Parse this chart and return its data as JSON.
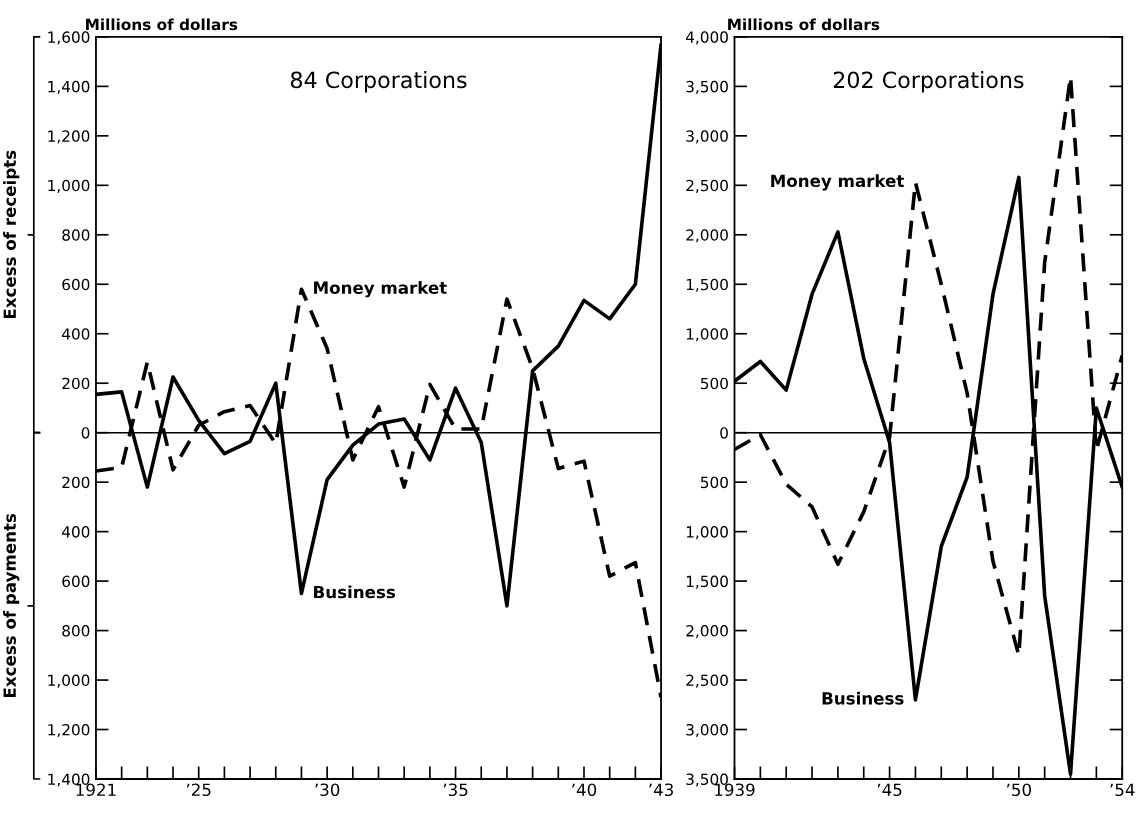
{
  "chart_data": [
    {
      "type": "line",
      "title": "84 Corporations",
      "ylabel": "Millions of dollars",
      "x": [
        1921,
        1922,
        1923,
        1924,
        1925,
        1926,
        1927,
        1928,
        1929,
        1930,
        1931,
        1932,
        1933,
        1934,
        1935,
        1936,
        1937,
        1938,
        1939,
        1940,
        1941,
        1942,
        1943
      ],
      "series": [
        {
          "name": "Business",
          "color": "#000000",
          "line_style": "solid",
          "values": [
            155,
            165,
            -220,
            225,
            50,
            -85,
            -35,
            200,
            -650,
            -190,
            -50,
            35,
            55,
            -110,
            180,
            -40,
            -700,
            250,
            350,
            535,
            460,
            600,
            1570
          ]
        },
        {
          "name": "Money market",
          "color": "#000000",
          "line_style": "dashed",
          "values": [
            -155,
            -140,
            285,
            -150,
            30,
            85,
            110,
            -45,
            580,
            340,
            -110,
            105,
            -220,
            195,
            15,
            15,
            540,
            260,
            -145,
            -115,
            -580,
            -525,
            -1070
          ]
        }
      ],
      "xlim": [
        1921,
        1943
      ],
      "ylim": [
        -1400,
        1600
      ],
      "xticks": [
        {
          "value": 1921,
          "label": "1921"
        },
        {
          "value": 1922,
          "label": null
        },
        {
          "value": 1923,
          "label": null
        },
        {
          "value": 1924,
          "label": null
        },
        {
          "value": 1925,
          "label": "’25"
        },
        {
          "value": 1926,
          "label": null
        },
        {
          "value": 1927,
          "label": null
        },
        {
          "value": 1928,
          "label": null
        },
        {
          "value": 1929,
          "label": null
        },
        {
          "value": 1930,
          "label": "’30"
        },
        {
          "value": 1931,
          "label": null
        },
        {
          "value": 1932,
          "label": null
        },
        {
          "value": 1933,
          "label": null
        },
        {
          "value": 1934,
          "label": null
        },
        {
          "value": 1935,
          "label": "’35"
        },
        {
          "value": 1936,
          "label": null
        },
        {
          "value": 1937,
          "label": null
        },
        {
          "value": 1938,
          "label": null
        },
        {
          "value": 1939,
          "label": null
        },
        {
          "value": 1940,
          "label": "’40"
        },
        {
          "value": 1941,
          "label": null
        },
        {
          "value": 1942,
          "label": null
        },
        {
          "value": 1943,
          "label": "’43"
        }
      ],
      "yticks": [
        {
          "value": 1600,
          "label": "1,600"
        },
        {
          "value": 1400,
          "label": "1,400"
        },
        {
          "value": 1200,
          "label": "1,200"
        },
        {
          "value": 1000,
          "label": "1,000"
        },
        {
          "value": 800,
          "label": "800"
        },
        {
          "value": 600,
          "label": "600"
        },
        {
          "value": 400,
          "label": "400"
        },
        {
          "value": 200,
          "label": "200"
        },
        0,
        {
          "value": -200,
          "label": "200"
        },
        {
          "value": -400,
          "label": "400"
        },
        {
          "value": -600,
          "label": "600"
        },
        {
          "value": -800,
          "label": "800"
        },
        {
          "value": -1000,
          "label": "1,000"
        },
        {
          "value": -1200,
          "label": "1,200"
        },
        {
          "value": -1400,
          "label": "1,400"
        }
      ],
      "ref_lines": [
        {
          "axis": "y",
          "value": 0,
          "label": null
        }
      ],
      "annotations": [
        "Excess of receipts",
        "Excess of payments"
      ]
    },
    {
      "type": "line",
      "title": "202 Corporations",
      "ylabel": "Millions of dollars",
      "x": [
        1939,
        1940,
        1941,
        1942,
        1943,
        1944,
        1945,
        1946,
        1947,
        1948,
        1949,
        1950,
        1951,
        1952,
        1953,
        1954
      ],
      "series": [
        {
          "name": "Business",
          "color": "#000000",
          "line_style": "solid",
          "values": [
            520,
            720,
            430,
            1400,
            2030,
            750,
            -100,
            -2700,
            -1150,
            -450,
            1400,
            2580,
            -1650,
            -3450,
            250,
            -550
          ]
        },
        {
          "name": "Money market",
          "color": "#000000",
          "line_style": "dashed",
          "values": [
            -170,
            -20,
            -520,
            -750,
            -1330,
            -800,
            -50,
            2530,
            1500,
            400,
            -1300,
            -2250,
            1720,
            3600,
            -180,
            780
          ]
        }
      ],
      "xlim": [
        1939,
        1954
      ],
      "ylim": [
        -3500,
        4000
      ],
      "xticks": [
        {
          "value": 1939,
          "label": "1939"
        },
        {
          "value": 1940,
          "label": null
        },
        {
          "value": 1941,
          "label": null
        },
        {
          "value": 1942,
          "label": null
        },
        {
          "value": 1943,
          "label": null
        },
        {
          "value": 1944,
          "label": null
        },
        {
          "value": 1945,
          "label": "’45"
        },
        {
          "value": 1946,
          "label": null
        },
        {
          "value": 1947,
          "label": null
        },
        {
          "value": 1948,
          "label": null
        },
        {
          "value": 1949,
          "label": null
        },
        {
          "value": 1950,
          "label": "’50"
        },
        {
          "value": 1951,
          "label": null
        },
        {
          "value": 1952,
          "label": null
        },
        {
          "value": 1953,
          "label": null
        },
        {
          "value": 1954,
          "label": "’54"
        }
      ],
      "yticks": [
        {
          "value": 4000,
          "label": "4,000"
        },
        {
          "value": 3500,
          "label": "3,500"
        },
        {
          "value": 3000,
          "label": "3,000"
        },
        {
          "value": 2500,
          "label": "2,500"
        },
        {
          "value": 2000,
          "label": "2,000"
        },
        {
          "value": 1500,
          "label": "1,500"
        },
        {
          "value": 1000,
          "label": "1,000"
        },
        {
          "value": 500,
          "label": "500"
        },
        0,
        {
          "value": -500,
          "label": "500"
        },
        {
          "value": -1000,
          "label": "1,000"
        },
        {
          "value": -1500,
          "label": "1,500"
        },
        {
          "value": -2000,
          "label": "2,000"
        },
        {
          "value": -2500,
          "label": "2,500"
        },
        {
          "value": -3000,
          "label": "3,000"
        },
        {
          "value": -3500,
          "label": "3,500"
        }
      ],
      "ref_lines": [
        {
          "axis": "y",
          "value": 0,
          "label": null
        }
      ]
    }
  ]
}
